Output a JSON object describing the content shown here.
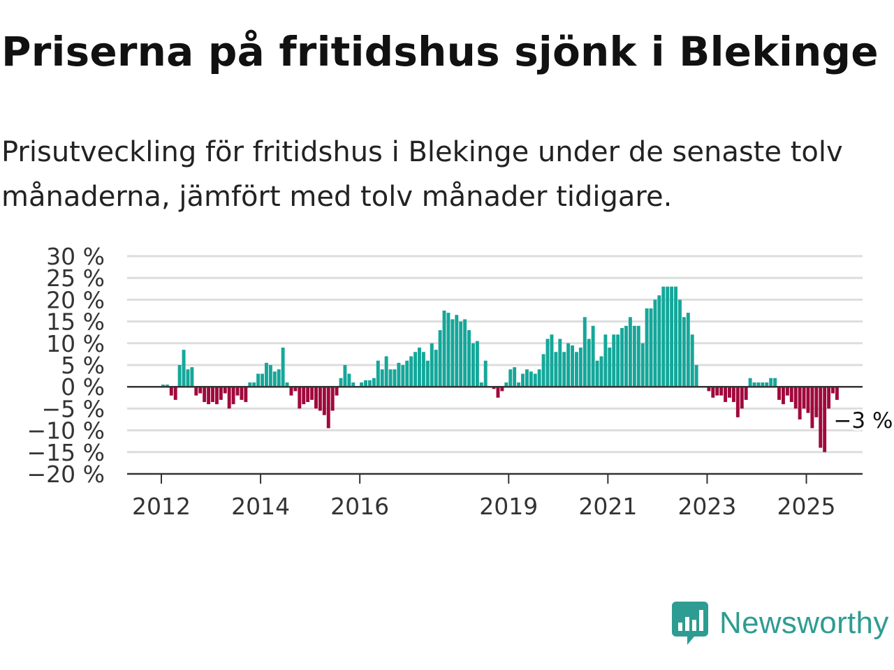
{
  "title": "Priserna på fritidshus sjönk i Blekinge",
  "subtitle": "Prisutveckling för fritidshus i Blekinge under de senaste tolv månaderna, jämfört med tolv månader tidigare.",
  "brand": {
    "name": "Newsworthy",
    "color": "#2e9c92",
    "logo_icon": "bar-chart-speech-bubble-icon"
  },
  "colors": {
    "positive": "#14a79a",
    "negative": "#a0093c",
    "zero_line": "#333333",
    "grid": "#dddddd"
  },
  "chart_data": {
    "type": "bar",
    "x_unit": "month",
    "start_month": "2012-01",
    "ylim": [
      -20,
      30
    ],
    "y_ticks": [
      30,
      25,
      20,
      15,
      10,
      5,
      0,
      -5,
      -10,
      -15,
      -20
    ],
    "y_tick_labels": [
      "30 %",
      "25 %",
      "20 %",
      "15 %",
      "10 %",
      "5 %",
      "0 %",
      "−5 %",
      "−10 %",
      "−15 %",
      "−20 %"
    ],
    "x_ticks": [
      {
        "label": "2012",
        "date": "2012-01"
      },
      {
        "label": "2014",
        "date": "2014-01"
      },
      {
        "label": "2016",
        "date": "2016-01"
      },
      {
        "label": "2019",
        "date": "2019-01"
      },
      {
        "label": "2021",
        "date": "2021-01"
      },
      {
        "label": "2023",
        "date": "2023-01"
      },
      {
        "label": "2025",
        "date": "2025-01"
      }
    ],
    "grid": true,
    "last_value_label": "−3 %",
    "values": [
      0.5,
      0.5,
      -2,
      -3,
      5,
      8.5,
      4,
      4.5,
      -2,
      -1.5,
      -3.5,
      -4,
      -3.5,
      -4,
      -3,
      -1.5,
      -5,
      -4,
      -2,
      -3,
      -3.5,
      1,
      1,
      3,
      3,
      5.5,
      5,
      3.5,
      4,
      9,
      1,
      -2,
      -1,
      -5,
      -4,
      -3.5,
      -3,
      -5,
      -5.5,
      -6.5,
      -9.5,
      -5.5,
      -2,
      2,
      5,
      3,
      1,
      0,
      1,
      1.5,
      1.5,
      2,
      6,
      4,
      7,
      4,
      4,
      5.5,
      5,
      6,
      7,
      8,
      9,
      8,
      6,
      10,
      8.5,
      13,
      17.5,
      17,
      15.5,
      16.5,
      15,
      15.5,
      13,
      10,
      10.5,
      1,
      6,
      0,
      -0.5,
      -2.5,
      -1,
      1,
      4,
      4.5,
      1,
      3,
      4,
      3.5,
      3,
      4,
      7.5,
      11,
      12,
      8,
      11,
      8,
      10,
      9.5,
      8,
      9,
      16,
      11,
      14,
      6,
      7,
      12,
      9,
      12,
      12,
      13.5,
      14,
      16,
      14,
      14,
      10,
      18,
      18,
      20,
      21,
      23,
      23,
      23,
      23,
      20,
      16,
      17,
      12,
      5,
      0,
      0,
      -1,
      -2.5,
      -2,
      -2,
      -3.5,
      -2.5,
      -3.5,
      -7,
      -5,
      -3,
      2,
      1,
      1,
      1,
      1,
      2,
      2,
      -3,
      -4,
      -2,
      -3.5,
      -5,
      -7.5,
      -5,
      -6,
      -9.5,
      -7,
      -14,
      -15,
      -5,
      -1.5,
      -3
    ]
  }
}
